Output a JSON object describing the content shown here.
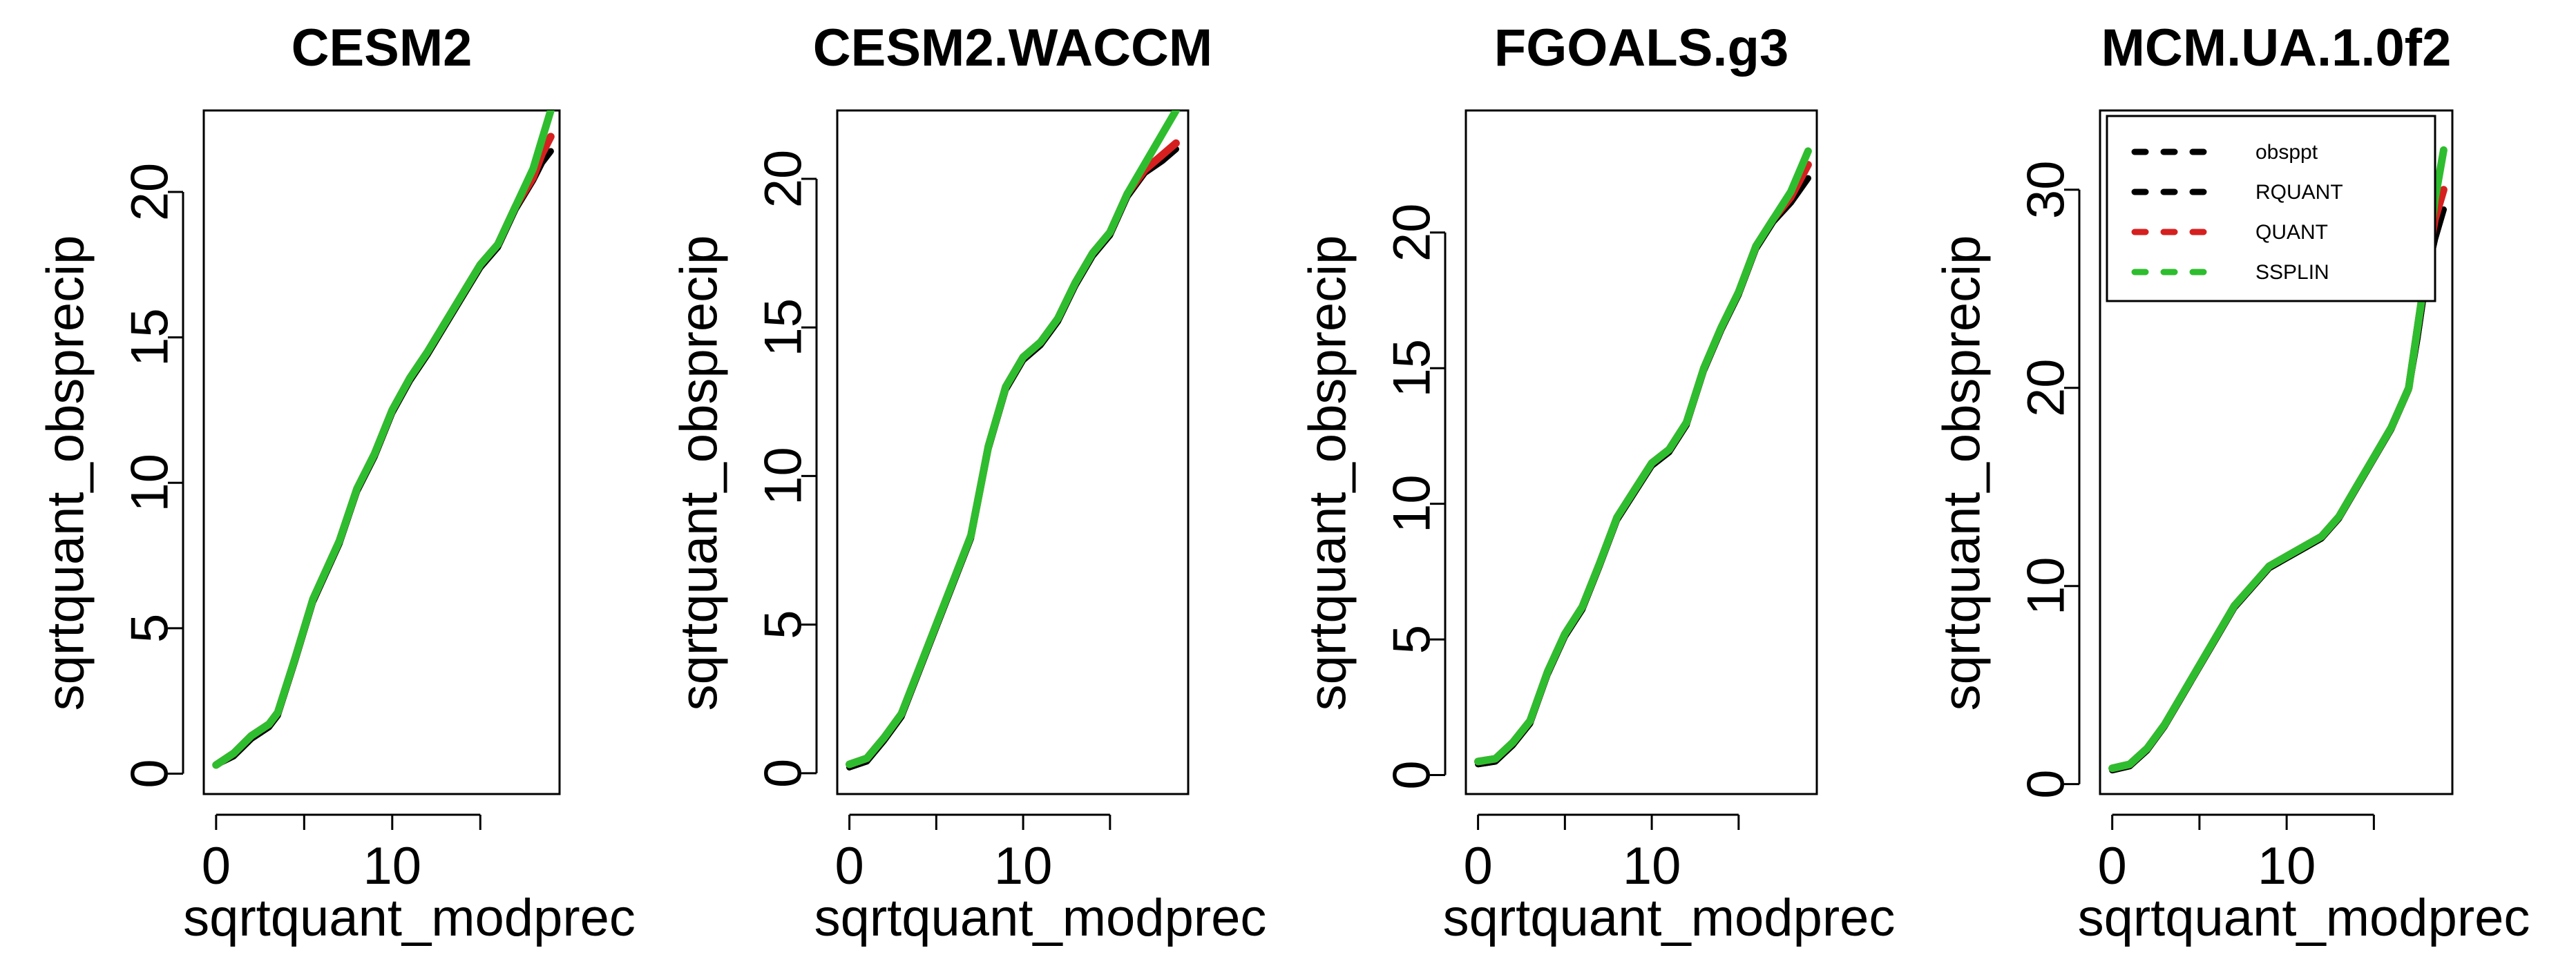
{
  "figure": {
    "panels": [
      {
        "title": "CESM2",
        "xlabel": "sqrtquant_modprec",
        "ylabel": "sqrtquant_obsprecip",
        "xticks": [
          "0",
          "10"
        ],
        "yticks": [
          "0",
          "5",
          "10",
          "15",
          "20"
        ]
      },
      {
        "title": "CESM2.WACCM",
        "xlabel": "sqrtquant_modprec",
        "ylabel": "sqrtquant_obsprecip",
        "xticks": [
          "0",
          "10"
        ],
        "yticks": [
          "0",
          "5",
          "10",
          "15",
          "20"
        ]
      },
      {
        "title": "FGOALS.g3",
        "xlabel": "sqrtquant_modprec",
        "ylabel": "sqrtquant_obsprecip",
        "xticks": [
          "0",
          "10"
        ],
        "yticks": [
          "0",
          "5",
          "10",
          "15",
          "20"
        ]
      },
      {
        "title": "MCM.UA.1.0f2",
        "xlabel": "sqrtquant_modprec",
        "ylabel": "sqrtquant_obsprecip",
        "xticks": [
          "0",
          "10"
        ],
        "yticks": [
          "0",
          "10",
          "20",
          "30"
        ]
      }
    ],
    "legend": {
      "placement": "top-left of last panel",
      "entries": [
        {
          "label": "obsppt",
          "color": "#000000"
        },
        {
          "label": "RQUANT",
          "color": "#000000"
        },
        {
          "label": "QUANT",
          "color": "#d62020"
        },
        {
          "label": "SSPLIN",
          "color": "#2ebd2e"
        }
      ]
    }
  },
  "chart_data": [
    {
      "type": "line",
      "title": "CESM2",
      "xlabel": "sqrtquant_modprec",
      "ylabel": "sqrtquant_obsprecip",
      "xlim": [
        -0.7,
        19.5
      ],
      "ylim": [
        -0.7,
        22.8
      ],
      "x_minor_ticks": [
        5,
        15
      ],
      "x": [
        0,
        1,
        2,
        3,
        3.5,
        4.5,
        5.5,
        7,
        8,
        9,
        10,
        11,
        12,
        13,
        14,
        15,
        16,
        17,
        18,
        18.5,
        19
      ],
      "series": [
        {
          "name": "SSPLIN",
          "color": "#2ebd2e",
          "values": [
            0.3,
            0.7,
            1.3,
            1.7,
            2.1,
            4.0,
            6.0,
            8.0,
            9.8,
            11.0,
            12.5,
            13.6,
            14.5,
            15.5,
            16.5,
            17.5,
            18.2,
            19.5,
            20.8,
            21.8,
            22.8
          ]
        },
        {
          "name": "QUANT",
          "color": "#d62020",
          "values": [
            0.3,
            0.7,
            1.3,
            1.7,
            2.1,
            4.0,
            6.0,
            8.0,
            9.8,
            11.0,
            12.5,
            13.6,
            14.5,
            15.5,
            16.5,
            17.5,
            18.2,
            19.5,
            20.5,
            21.3,
            21.9
          ]
        },
        {
          "name": "RQUANT",
          "color": "#000000",
          "values": [
            0.3,
            0.6,
            1.2,
            1.6,
            2.0,
            3.9,
            5.9,
            7.9,
            9.7,
            10.9,
            12.4,
            13.5,
            14.4,
            15.4,
            16.4,
            17.4,
            18.1,
            19.4,
            20.4,
            21.0,
            21.4
          ]
        },
        {
          "name": "obsppt",
          "color": "#000000",
          "values": [
            0.3,
            0.6,
            1.2,
            1.6,
            2.0,
            3.9,
            5.9,
            7.9,
            9.7,
            10.9,
            12.4,
            13.5,
            14.4,
            15.4,
            16.4,
            17.4,
            18.1,
            19.4,
            20.4,
            21.0,
            21.4
          ]
        }
      ]
    },
    {
      "type": "line",
      "title": "CESM2.WACCM",
      "xlabel": "sqrtquant_modprec",
      "ylabel": "sqrtquant_obsprecip",
      "xlim": [
        -0.7,
        19.5
      ],
      "ylim": [
        -0.7,
        22.3
      ],
      "x_minor_ticks": [
        5,
        15
      ],
      "x": [
        0,
        1,
        2,
        3,
        4,
        5,
        6,
        7,
        7.5,
        8,
        9,
        10,
        11,
        12,
        13,
        14,
        15,
        16,
        17,
        18,
        18.8
      ],
      "series": [
        {
          "name": "SSPLIN",
          "color": "#2ebd2e",
          "values": [
            0.3,
            0.5,
            1.2,
            2.0,
            3.5,
            5.0,
            6.5,
            8.0,
            9.5,
            11.0,
            13.0,
            14.0,
            14.5,
            15.3,
            16.5,
            17.5,
            18.2,
            19.5,
            20.5,
            21.5,
            22.3
          ]
        },
        {
          "name": "QUANT",
          "color": "#d62020",
          "values": [
            0.3,
            0.5,
            1.2,
            2.0,
            3.5,
            5.0,
            6.5,
            8.0,
            9.5,
            11.0,
            13.0,
            14.0,
            14.5,
            15.3,
            16.5,
            17.5,
            18.2,
            19.5,
            20.3,
            20.8,
            21.2
          ]
        },
        {
          "name": "RQUANT",
          "color": "#000000",
          "values": [
            0.2,
            0.4,
            1.1,
            1.9,
            3.4,
            4.9,
            6.4,
            7.9,
            9.4,
            10.9,
            12.9,
            13.9,
            14.4,
            15.2,
            16.4,
            17.4,
            18.1,
            19.4,
            20.2,
            20.6,
            21.0
          ]
        },
        {
          "name": "obsppt",
          "color": "#000000",
          "values": [
            0.2,
            0.4,
            1.1,
            1.9,
            3.4,
            4.9,
            6.4,
            7.9,
            9.4,
            10.9,
            12.9,
            13.9,
            14.4,
            15.2,
            16.4,
            17.4,
            18.1,
            19.4,
            20.2,
            20.6,
            21.0
          ]
        }
      ]
    },
    {
      "type": "line",
      "title": "FGOALS.g3",
      "xlabel": "sqrtquant_modprec",
      "ylabel": "sqrtquant_obsprecip",
      "xlim": [
        -0.7,
        19.5
      ],
      "ylim": [
        -0.7,
        24.5
      ],
      "x_minor_ticks": [
        5,
        15
      ],
      "x": [
        0,
        1,
        2,
        3,
        4,
        5,
        6,
        7,
        8,
        9,
        10,
        11,
        12,
        13,
        14,
        15,
        16,
        17,
        18,
        19
      ],
      "series": [
        {
          "name": "SSPLIN",
          "color": "#2ebd2e",
          "values": [
            0.5,
            0.6,
            1.2,
            2.0,
            3.8,
            5.2,
            6.2,
            7.8,
            9.5,
            10.5,
            11.5,
            12.0,
            13.0,
            15.0,
            16.5,
            17.8,
            19.5,
            20.5,
            21.5,
            23.0
          ]
        },
        {
          "name": "QUANT",
          "color": "#d62020",
          "values": [
            0.5,
            0.6,
            1.2,
            2.0,
            3.8,
            5.2,
            6.2,
            7.8,
            9.5,
            10.5,
            11.5,
            12.0,
            13.0,
            15.0,
            16.5,
            17.8,
            19.5,
            20.5,
            21.3,
            22.5
          ]
        },
        {
          "name": "RQUANT",
          "color": "#000000",
          "values": [
            0.4,
            0.5,
            1.1,
            1.9,
            3.7,
            5.1,
            6.1,
            7.7,
            9.4,
            10.4,
            11.4,
            11.9,
            12.9,
            14.9,
            16.4,
            17.7,
            19.4,
            20.4,
            21.1,
            22.0
          ]
        },
        {
          "name": "obsppt",
          "color": "#000000",
          "values": [
            0.4,
            0.5,
            1.1,
            1.9,
            3.7,
            5.1,
            6.1,
            7.7,
            9.4,
            10.4,
            11.4,
            11.9,
            12.9,
            14.9,
            16.4,
            17.7,
            19.4,
            20.4,
            21.1,
            22.0
          ]
        }
      ]
    },
    {
      "type": "line",
      "title": "MCM.UA.1.0f2",
      "xlabel": "sqrtquant_modprec",
      "ylabel": "sqrtquant_obsprecip",
      "xlim": [
        -0.7,
        19.5
      ],
      "ylim": [
        -0.5,
        34
      ],
      "x_minor_ticks": [
        5,
        15
      ],
      "x": [
        0,
        1,
        2,
        3,
        4,
        5,
        6,
        7,
        8,
        9,
        10,
        11,
        12,
        13,
        14,
        15,
        16,
        17,
        17.5,
        18,
        18.5,
        19
      ],
      "series": [
        {
          "name": "SSPLIN",
          "color": "#2ebd2e",
          "values": [
            0.8,
            1.0,
            1.8,
            3.0,
            4.5,
            6.0,
            7.5,
            9.0,
            10.0,
            11.0,
            11.5,
            12.0,
            12.5,
            13.5,
            15.0,
            16.5,
            18.0,
            20.0,
            23.0,
            26.0,
            29.5,
            32.0
          ]
        },
        {
          "name": "QUANT",
          "color": "#d62020",
          "values": [
            0.8,
            1.0,
            1.8,
            3.0,
            4.5,
            6.0,
            7.5,
            9.0,
            10.0,
            11.0,
            11.5,
            12.0,
            12.5,
            13.5,
            15.0,
            16.5,
            18.0,
            20.0,
            23.0,
            26.0,
            28.5,
            30.0
          ]
        },
        {
          "name": "RQUANT",
          "color": "#000000",
          "values": [
            0.7,
            0.9,
            1.7,
            2.9,
            4.4,
            5.9,
            7.4,
            8.9,
            9.9,
            10.9,
            11.4,
            11.9,
            12.4,
            13.4,
            14.9,
            16.4,
            17.9,
            19.9,
            22.5,
            25.5,
            27.5,
            29.0
          ]
        },
        {
          "name": "obsppt",
          "color": "#000000",
          "values": [
            0.7,
            0.9,
            1.7,
            2.9,
            4.4,
            5.9,
            7.4,
            8.9,
            9.9,
            10.9,
            11.4,
            11.9,
            12.4,
            13.4,
            14.9,
            16.4,
            17.9,
            19.9,
            22.5,
            25.5,
            27.5,
            29.0
          ]
        }
      ]
    }
  ]
}
